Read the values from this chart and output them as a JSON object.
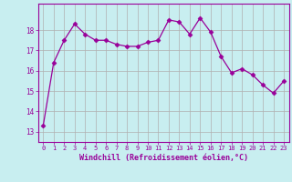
{
  "x": [
    0,
    1,
    2,
    3,
    4,
    5,
    6,
    7,
    8,
    9,
    10,
    11,
    12,
    13,
    14,
    15,
    16,
    17,
    18,
    19,
    20,
    21,
    22,
    23
  ],
  "y": [
    13.3,
    16.4,
    17.5,
    18.3,
    17.8,
    17.5,
    17.5,
    17.3,
    17.2,
    17.2,
    17.4,
    17.5,
    18.5,
    18.4,
    17.8,
    18.6,
    17.9,
    16.7,
    15.9,
    16.1,
    15.8,
    15.3,
    14.9,
    15.5
  ],
  "line_color": "#990099",
  "marker": "D",
  "marker_size": 2.5,
  "bg_color": "#c8eef0",
  "grid_color": "#b0b0b0",
  "xlabel": "Windchill (Refroidissement éolien,°C)",
  "xlabel_color": "#990099",
  "tick_color": "#990099",
  "ylim": [
    12.5,
    19.3
  ],
  "yticks": [
    13,
    14,
    15,
    16,
    17,
    18
  ],
  "xlim": [
    -0.5,
    23.5
  ],
  "xticks": [
    0,
    1,
    2,
    3,
    4,
    5,
    6,
    7,
    8,
    9,
    10,
    11,
    12,
    13,
    14,
    15,
    16,
    17,
    18,
    19,
    20,
    21,
    22,
    23
  ]
}
